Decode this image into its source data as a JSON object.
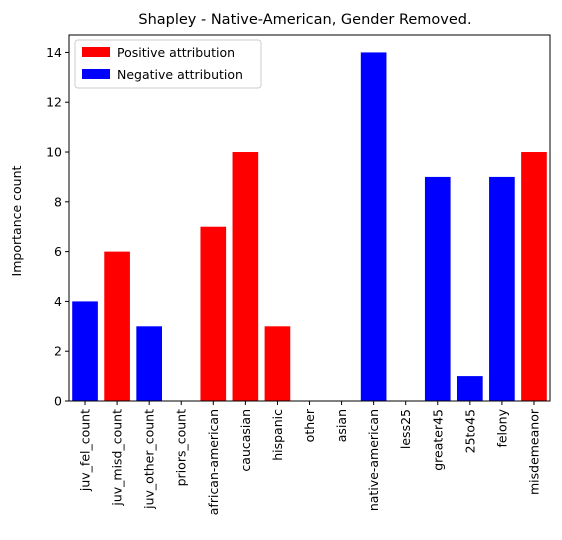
{
  "chart_data": {
    "type": "bar",
    "title": "Shapley - Native-American, Gender Removed.",
    "xlabel": "",
    "ylabel": "Importance count",
    "ylim": [
      0,
      14.7
    ],
    "yticks": [
      0,
      2,
      4,
      6,
      8,
      10,
      12,
      14
    ],
    "categories": [
      "juv_fel_count",
      "juv_misd_count",
      "juv_other_count",
      "priors_count",
      "african-american",
      "caucasian",
      "hispanic",
      "other",
      "asian",
      "native-american",
      "less25",
      "greater45",
      "25to45",
      "felony",
      "misdemeanor"
    ],
    "values": [
      4,
      6,
      3,
      0,
      7,
      10,
      3,
      0,
      0,
      14,
      0,
      9,
      1,
      9,
      10
    ],
    "signs": [
      "negative",
      "positive",
      "negative",
      "positive",
      "positive",
      "positive",
      "positive",
      "positive",
      "positive",
      "negative",
      "positive",
      "negative",
      "negative",
      "negative",
      "positive"
    ],
    "legend": {
      "position": "top-left",
      "entries": [
        {
          "label": "Positive attribution",
          "color": "#ff0000",
          "key": "positive"
        },
        {
          "label": "Negative attribution",
          "color": "#0000ff",
          "key": "negative"
        }
      ]
    },
    "grid": false
  }
}
